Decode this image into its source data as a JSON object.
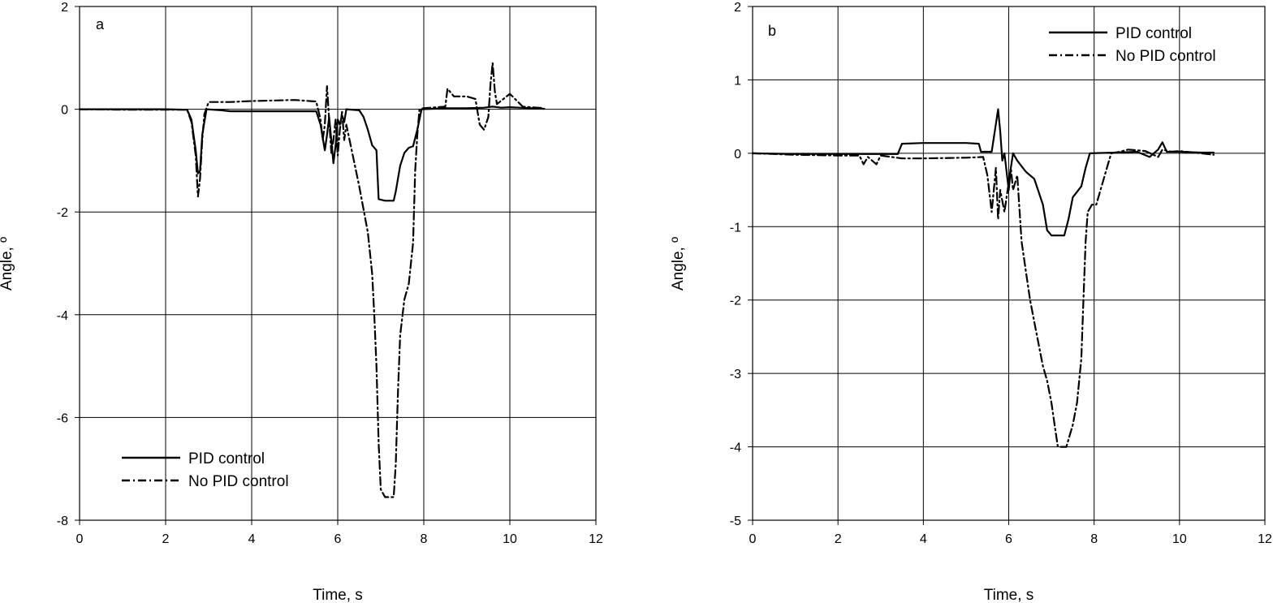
{
  "chart_data": [
    {
      "type": "line",
      "panel_label": "a",
      "xlabel": "Time, s",
      "ylabel": "Angle, º",
      "xlim": [
        0,
        12
      ],
      "ylim": [
        -8,
        2
      ],
      "xticks": [
        0,
        2,
        4,
        6,
        8,
        10,
        12
      ],
      "yticks": [
        -8,
        -6,
        -4,
        -2,
        0,
        2
      ],
      "grid": true,
      "legend_position": "bottom-left",
      "series": [
        {
          "name": "PID control",
          "style": "solid",
          "points": [
            [
              0,
              0
            ],
            [
              1,
              0
            ],
            [
              2,
              0
            ],
            [
              2.5,
              -0.01
            ],
            [
              2.6,
              -0.2
            ],
            [
              2.7,
              -0.8
            ],
            [
              2.75,
              -1.25
            ],
            [
              2.8,
              -1.2
            ],
            [
              2.85,
              -0.5
            ],
            [
              2.95,
              0
            ],
            [
              3.3,
              -0.02
            ],
            [
              3.5,
              -0.04
            ],
            [
              4,
              -0.04
            ],
            [
              5,
              -0.04
            ],
            [
              5.5,
              -0.04
            ],
            [
              5.6,
              -0.3
            ],
            [
              5.7,
              -0.8
            ],
            [
              5.75,
              -0.5
            ],
            [
              5.8,
              -0.15
            ],
            [
              5.85,
              -0.6
            ],
            [
              5.9,
              -1.05
            ],
            [
              5.95,
              -0.7
            ],
            [
              6,
              -0.2
            ],
            [
              6.05,
              -0.3
            ],
            [
              6.1,
              -0.12
            ],
            [
              6.15,
              -0.25
            ],
            [
              6.2,
              0
            ],
            [
              6.5,
              -0.02
            ],
            [
              6.6,
              -0.15
            ],
            [
              6.7,
              -0.4
            ],
            [
              6.8,
              -0.7
            ],
            [
              6.9,
              -0.8
            ],
            [
              6.95,
              -1.75
            ],
            [
              7.1,
              -1.78
            ],
            [
              7.3,
              -1.78
            ],
            [
              7.35,
              -1.6
            ],
            [
              7.45,
              -1.1
            ],
            [
              7.55,
              -0.85
            ],
            [
              7.65,
              -0.75
            ],
            [
              7.75,
              -0.72
            ],
            [
              7.85,
              -0.4
            ],
            [
              7.95,
              0
            ],
            [
              8.5,
              0.02
            ],
            [
              9,
              0.02
            ],
            [
              9.4,
              0.03
            ],
            [
              9.6,
              0.05
            ],
            [
              9.8,
              0.03
            ],
            [
              10,
              0.04
            ],
            [
              10.5,
              0.02
            ],
            [
              10.8,
              0.01
            ]
          ]
        },
        {
          "name": "No PID control",
          "style": "dash-dot",
          "points": [
            [
              0,
              0
            ],
            [
              1,
              -0.01
            ],
            [
              2,
              -0.01
            ],
            [
              2.5,
              -0.01
            ],
            [
              2.6,
              -0.25
            ],
            [
              2.7,
              -0.9
            ],
            [
              2.75,
              -1.7
            ],
            [
              2.8,
              -1.35
            ],
            [
              2.85,
              -0.6
            ],
            [
              2.9,
              -0.1
            ],
            [
              3,
              0.14
            ],
            [
              3.5,
              0.14
            ],
            [
              4,
              0.16
            ],
            [
              5,
              0.18
            ],
            [
              5.5,
              0.15
            ],
            [
              5.6,
              -0.2
            ],
            [
              5.65,
              -0.6
            ],
            [
              5.7,
              -0.3
            ],
            [
              5.75,
              0.45
            ],
            [
              5.8,
              -0.2
            ],
            [
              5.85,
              -0.85
            ],
            [
              5.9,
              -0.6
            ],
            [
              5.95,
              -0.2
            ],
            [
              6,
              -0.9
            ],
            [
              6.05,
              -0.4
            ],
            [
              6.1,
              -0.05
            ],
            [
              6.15,
              -0.6
            ],
            [
              6.2,
              -0.3
            ],
            [
              6.3,
              -0.7
            ],
            [
              6.5,
              -1.5
            ],
            [
              6.7,
              -2.4
            ],
            [
              6.8,
              -3.2
            ],
            [
              6.85,
              -4.0
            ],
            [
              6.9,
              -5.0
            ],
            [
              6.95,
              -6.5
            ],
            [
              7,
              -7.4
            ],
            [
              7.1,
              -7.55
            ],
            [
              7.3,
              -7.55
            ],
            [
              7.35,
              -6.9
            ],
            [
              7.4,
              -5.5
            ],
            [
              7.45,
              -4.4
            ],
            [
              7.55,
              -3.7
            ],
            [
              7.65,
              -3.4
            ],
            [
              7.75,
              -2.6
            ],
            [
              7.8,
              -1.2
            ],
            [
              7.85,
              -0.5
            ],
            [
              7.9,
              0
            ],
            [
              8,
              0.02
            ],
            [
              8.5,
              0.05
            ],
            [
              8.55,
              0.4
            ],
            [
              8.7,
              0.25
            ],
            [
              9,
              0.25
            ],
            [
              9.2,
              0.2
            ],
            [
              9.3,
              -0.3
            ],
            [
              9.4,
              -0.4
            ],
            [
              9.5,
              -0.15
            ],
            [
              9.55,
              0.5
            ],
            [
              9.6,
              0.9
            ],
            [
              9.65,
              0.35
            ],
            [
              9.7,
              0.1
            ],
            [
              10,
              0.3
            ],
            [
              10.3,
              0.05
            ],
            [
              10.8,
              0.02
            ]
          ]
        }
      ]
    },
    {
      "type": "line",
      "panel_label": "b",
      "xlabel": "Time, s",
      "ylabel": "Angle, º",
      "xlim": [
        0,
        12
      ],
      "ylim": [
        -5,
        2
      ],
      "xticks": [
        0,
        2,
        4,
        6,
        8,
        10,
        12
      ],
      "yticks": [
        -5,
        -4,
        -3,
        -2,
        -1,
        0,
        1,
        2
      ],
      "grid": true,
      "legend_position": "top-right",
      "series": [
        {
          "name": "PID control",
          "style": "solid",
          "points": [
            [
              0,
              0
            ],
            [
              1,
              -0.01
            ],
            [
              2,
              -0.01
            ],
            [
              3,
              -0.01
            ],
            [
              3.4,
              -0.01
            ],
            [
              3.5,
              0.13
            ],
            [
              4,
              0.14
            ],
            [
              5,
              0.14
            ],
            [
              5.3,
              0.13
            ],
            [
              5.35,
              0.02
            ],
            [
              5.6,
              0.02
            ],
            [
              5.7,
              0.4
            ],
            [
              5.75,
              0.6
            ],
            [
              5.8,
              0.3
            ],
            [
              5.85,
              -0.1
            ],
            [
              5.9,
              0
            ],
            [
              6,
              -0.5
            ],
            [
              6.05,
              -0.2
            ],
            [
              6.1,
              0
            ],
            [
              6.2,
              -0.1
            ],
            [
              6.4,
              -0.25
            ],
            [
              6.6,
              -0.35
            ],
            [
              6.8,
              -0.7
            ],
            [
              6.9,
              -1.05
            ],
            [
              7,
              -1.12
            ],
            [
              7.3,
              -1.12
            ],
            [
              7.4,
              -0.9
            ],
            [
              7.5,
              -0.6
            ],
            [
              7.7,
              -0.45
            ],
            [
              7.8,
              -0.2
            ],
            [
              7.9,
              0
            ],
            [
              8.5,
              0.01
            ],
            [
              9,
              0.02
            ],
            [
              9.3,
              -0.05
            ],
            [
              9.5,
              0.05
            ],
            [
              9.6,
              0.15
            ],
            [
              9.7,
              0.02
            ],
            [
              10,
              0.02
            ],
            [
              10.5,
              0.01
            ],
            [
              10.8,
              0.01
            ]
          ]
        },
        {
          "name": "No PID control",
          "style": "dash-dot",
          "points": [
            [
              0,
              0
            ],
            [
              1,
              -0.02
            ],
            [
              2,
              -0.03
            ],
            [
              2.5,
              -0.03
            ],
            [
              2.6,
              -0.15
            ],
            [
              2.7,
              -0.05
            ],
            [
              2.9,
              -0.15
            ],
            [
              3,
              -0.03
            ],
            [
              3.5,
              -0.07
            ],
            [
              4,
              -0.07
            ],
            [
              5,
              -0.06
            ],
            [
              5.4,
              -0.05
            ],
            [
              5.5,
              -0.3
            ],
            [
              5.6,
              -0.8
            ],
            [
              5.65,
              -0.5
            ],
            [
              5.7,
              -0.2
            ],
            [
              5.75,
              -0.9
            ],
            [
              5.8,
              -0.5
            ],
            [
              5.9,
              -0.8
            ],
            [
              6,
              -0.4
            ],
            [
              6.05,
              -0.2
            ],
            [
              6.1,
              -0.5
            ],
            [
              6.2,
              -0.3
            ],
            [
              6.3,
              -1.2
            ],
            [
              6.4,
              -1.6
            ],
            [
              6.5,
              -2.0
            ],
            [
              6.6,
              -2.3
            ],
            [
              6.7,
              -2.6
            ],
            [
              6.8,
              -2.9
            ],
            [
              6.9,
              -3.1
            ],
            [
              7,
              -3.4
            ],
            [
              7.1,
              -3.8
            ],
            [
              7.15,
              -4.0
            ],
            [
              7.35,
              -4.0
            ],
            [
              7.5,
              -3.7
            ],
            [
              7.6,
              -3.4
            ],
            [
              7.7,
              -2.8
            ],
            [
              7.75,
              -2.0
            ],
            [
              7.8,
              -1.2
            ],
            [
              7.85,
              -0.8
            ],
            [
              7.95,
              -0.7
            ],
            [
              8.05,
              -0.7
            ],
            [
              8.2,
              -0.4
            ],
            [
              8.3,
              -0.2
            ],
            [
              8.4,
              0
            ],
            [
              8.6,
              0.02
            ],
            [
              8.8,
              0.05
            ],
            [
              9.2,
              0.03
            ],
            [
              9.5,
              -0.05
            ],
            [
              9.6,
              0.05
            ],
            [
              9.8,
              0.02
            ],
            [
              10,
              0.03
            ],
            [
              10.5,
              0
            ],
            [
              10.8,
              -0.02
            ]
          ]
        }
      ]
    }
  ]
}
